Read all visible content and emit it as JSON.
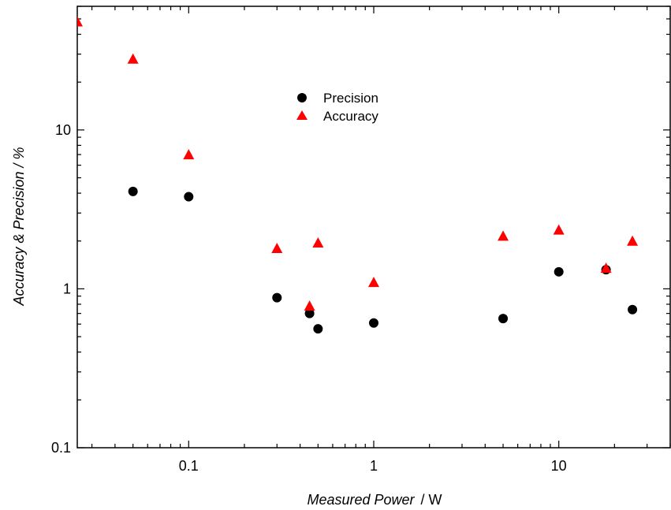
{
  "chart_data": {
    "type": "scatter",
    "xscale": "log",
    "yscale": "log",
    "xlim": [
      0.025,
      40
    ],
    "ylim": [
      0.1,
      60
    ],
    "xticks": [
      {
        "value": 0.1,
        "label": "0.1"
      },
      {
        "value": 1,
        "label": "1"
      },
      {
        "value": 10,
        "label": "10"
      }
    ],
    "yticks": [
      {
        "value": 0.1,
        "label": "0.1"
      },
      {
        "value": 1,
        "label": "1"
      },
      {
        "value": 10,
        "label": "10"
      }
    ],
    "xlabel": "Measured Power",
    "xlabel_unit": "/ W",
    "ylabel": "Accuracy & Precision / %",
    "grid": false,
    "legend_position": "top-center",
    "series": [
      {
        "name": "Precision",
        "marker": "circle",
        "color": "#000000",
        "points": [
          [
            0.05,
            4.1
          ],
          [
            0.1,
            3.8
          ],
          [
            0.3,
            0.88
          ],
          [
            0.45,
            0.7
          ],
          [
            0.5,
            0.56
          ],
          [
            1,
            0.61
          ],
          [
            5,
            0.65
          ],
          [
            10,
            1.28
          ],
          [
            18,
            1.32
          ],
          [
            25,
            0.74
          ]
        ]
      },
      {
        "name": "Accuracy",
        "marker": "triangle",
        "color": "#ff0000",
        "points": [
          [
            0.025,
            48
          ],
          [
            0.05,
            28
          ],
          [
            0.1,
            7.0
          ],
          [
            0.3,
            1.8
          ],
          [
            0.45,
            0.78
          ],
          [
            0.5,
            1.95
          ],
          [
            1,
            1.1
          ],
          [
            5,
            2.15
          ],
          [
            10,
            2.35
          ],
          [
            18,
            1.35
          ],
          [
            25,
            2.0
          ]
        ]
      }
    ]
  }
}
